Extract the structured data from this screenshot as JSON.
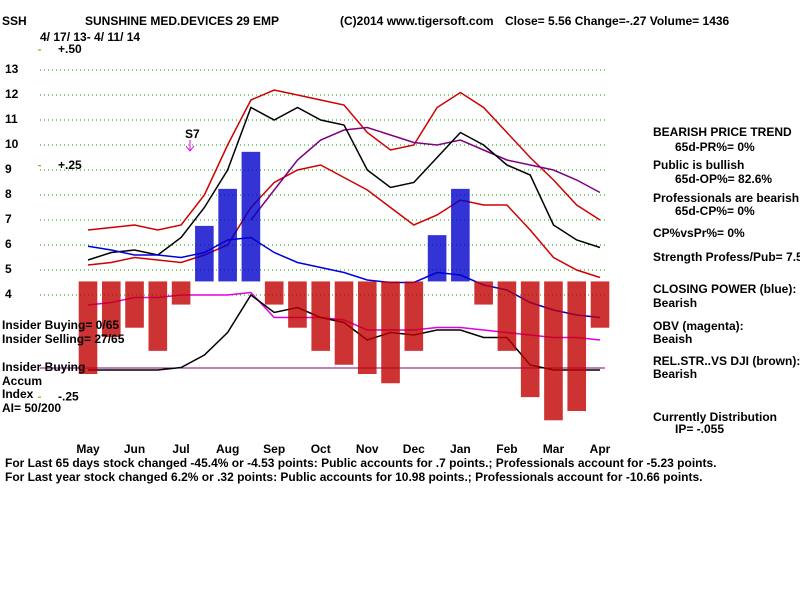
{
  "header": {
    "symbol": "SSH",
    "name": "SUNSHINE MED.DEVICES 29 EMP",
    "copyright": "(C)2014 www.tigersoft.com",
    "quote": "Close=  5.56  Change=-.27 Volume= 1436",
    "dates": "4/ 17/ 13- 4/ 11/ 14"
  },
  "left_notes": [
    "Insider Buying= 0/65",
    "Insider Selling= 27/65",
    "Insider Buying",
    "Accum",
    "Index",
    "AI= 50/200"
  ],
  "side_notes": [
    "BEARISH PRICE TREND",
    "65d-PR%= 0%",
    "Public is bullish",
    "65d-OP%= 82.6%",
    "Professionals are bearish",
    "65d-CP%= 0%",
    "CP%vsPr%=  0%",
    "Strength Profess/Pub= 7.5",
    "CLOSING POWER (blue):",
    "Bearish",
    "OBV (magenta):",
    "Beaish",
    "REL.STR..VS DJI (brown):",
    "Bearish",
    "Currently Distribution",
    "IP= -.055"
  ],
  "footer": [
    "For Last 65 days stock changed -45.4% or -4.53 points:  Public accounts for  .7 points.;  Professionals account for -5.23 points.",
    "For Last year stock changed  6.2% or  .32 points:  Public accounts for  10.98 points.;  Professionals account for -10.66 points."
  ],
  "chart_data": {
    "type": "line",
    "categories": [
      "May",
      null,
      "Jun",
      null,
      "Jul",
      null,
      "Aug",
      null,
      "Sep",
      null,
      "Oct",
      null,
      "Nov",
      null,
      "Dec",
      null,
      "Jan",
      null,
      "Feb",
      null,
      "Mar",
      null,
      "Apr"
    ],
    "ylim": [
      -2.4,
      13.8
    ],
    "yticks": [
      4,
      5,
      6,
      7,
      8,
      9,
      10,
      11,
      12,
      13
    ],
    "grid": true,
    "y2lim": [
      -0.375,
      0.5
    ],
    "y2ticks": [
      {
        "value": 0.5,
        "label": "+.50"
      },
      {
        "value": 0.25,
        "label": "+.25"
      },
      {
        "value": -0.25,
        "label": "-.25"
      }
    ],
    "annotations": [
      "S7"
    ],
    "series": [
      {
        "color": "#d00000",
        "values": [
          6.6,
          6.7,
          6.8,
          6.6,
          6.8,
          8.0,
          10.0,
          11.8,
          12.2,
          12.0,
          11.8,
          11.6,
          10.5,
          9.8,
          10.0,
          11.5,
          12.1,
          11.5,
          10.5,
          9.5,
          8.6,
          7.6,
          7.0
        ]
      },
      {
        "color": "#d00000",
        "values": [
          5.2,
          5.3,
          5.5,
          5.4,
          5.3,
          5.6,
          6.0,
          7.5,
          8.5,
          9.0,
          9.2,
          8.7,
          8.2,
          7.5,
          6.8,
          7.2,
          7.8,
          7.6,
          7.6,
          6.6,
          5.5,
          5.0,
          4.7
        ]
      },
      {
        "color": "#800080",
        "values": [
          null,
          null,
          null,
          null,
          null,
          null,
          null,
          7.0,
          8.2,
          9.4,
          10.2,
          10.6,
          10.7,
          10.4,
          10.1,
          10.0,
          10.2,
          9.8,
          9.4,
          9.2,
          9.0,
          8.6,
          8.1
        ]
      },
      {
        "color": "#000000",
        "values": [
          5.4,
          5.7,
          5.8,
          5.6,
          6.3,
          7.5,
          9.0,
          11.5,
          11.0,
          11.5,
          11.0,
          10.8,
          9.0,
          8.3,
          8.5,
          9.5,
          10.5,
          10.0,
          9.2,
          8.8,
          6.8,
          6.2,
          5.9
        ]
      },
      {
        "color": "#0000dd",
        "values": [
          5.95,
          5.8,
          5.6,
          5.6,
          5.5,
          5.7,
          6.2,
          6.3,
          5.7,
          5.3,
          5.1,
          4.9,
          4.6,
          4.5,
          4.5,
          4.9,
          4.8,
          4.4,
          4.2,
          3.7,
          3.4,
          3.2,
          3.1
        ]
      },
      {
        "color": "#e000e0",
        "values": [
          3.6,
          3.7,
          3.9,
          3.9,
          4.0,
          4.0,
          4.0,
          4.1,
          3.1,
          3.1,
          3.1,
          3.0,
          2.6,
          2.6,
          2.6,
          2.7,
          2.7,
          2.6,
          2.5,
          2.4,
          2.3,
          2.3,
          2.2
        ]
      },
      {
        "color": "#000000",
        "values": [
          1.0,
          1.0,
          1.0,
          1.0,
          1.1,
          1.6,
          2.5,
          4.0,
          3.3,
          3.5,
          3.1,
          2.9,
          2.2,
          2.5,
          2.4,
          2.6,
          2.6,
          2.3,
          2.3,
          1.2,
          1.0,
          1.0,
          1.0
        ]
      },
      {
        "type": "bar",
        "axis": "y2",
        "color": "#c00000",
        "up_color": "#0000cc",
        "values": [
          -0.2,
          -0.12,
          -0.1,
          -0.15,
          -0.05,
          0.12,
          0.2,
          0.28,
          -0.05,
          -0.1,
          -0.15,
          -0.18,
          -0.2,
          -0.22,
          -0.15,
          0.1,
          0.2,
          -0.05,
          -0.15,
          -0.25,
          -0.3,
          -0.28,
          -0.1
        ]
      }
    ]
  }
}
